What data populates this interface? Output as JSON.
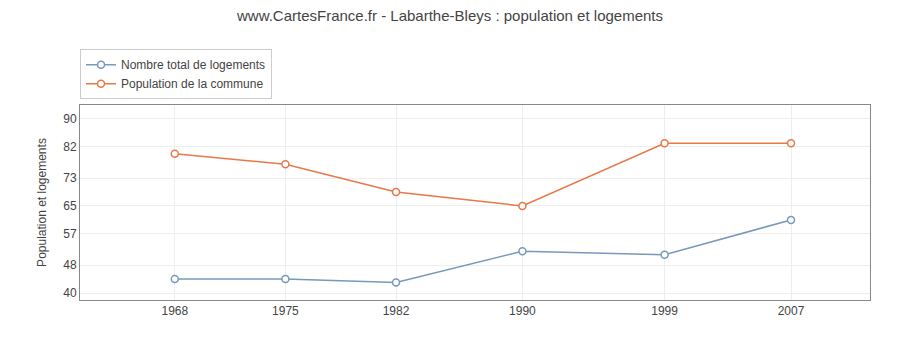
{
  "chart_data": {
    "type": "line",
    "title": "www.CartesFrance.fr - Labarthe-Bleys : population et logements",
    "ylabel": "Population et logements",
    "x": [
      1968,
      1975,
      1982,
      1990,
      1999,
      2007
    ],
    "series": [
      {
        "name": "Nombre total de logements",
        "color": "#7799bb",
        "marker": "circle",
        "values": [
          44,
          44,
          43,
          52,
          51,
          61
        ]
      },
      {
        "name": "Population de la commune",
        "color": "#e87848",
        "marker": "circle",
        "values": [
          80,
          77,
          69,
          65,
          83,
          83
        ]
      }
    ],
    "xlim": [
      1962,
      2012
    ],
    "xticks": [
      1968,
      1975,
      1982,
      1990,
      1999,
      2007
    ],
    "ylim": [
      38,
      94
    ],
    "yticks": [
      40,
      48,
      57,
      65,
      73,
      82,
      90
    ],
    "grid": true,
    "legend": "top"
  }
}
